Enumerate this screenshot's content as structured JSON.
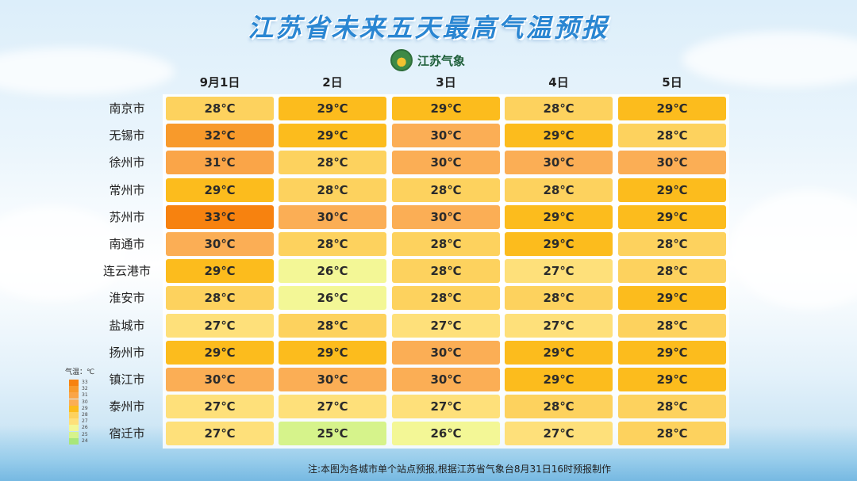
{
  "title": "江苏省未来五天最高气温预报",
  "logo_text": "江苏气象",
  "footnote": "注:本图为各城市单个站点预报,根据江苏省气象台8月31日16时预报制作",
  "chart_data": {
    "type": "table",
    "title": "江苏省未来五天最高气温预报",
    "unit": "℃",
    "columns": [
      "9月1日",
      "2日",
      "3日",
      "4日",
      "5日"
    ],
    "rows": [
      {
        "city": "南京市",
        "values": [
          28,
          29,
          29,
          28,
          29
        ]
      },
      {
        "city": "无锡市",
        "values": [
          32,
          29,
          30,
          29,
          28
        ]
      },
      {
        "city": "徐州市",
        "values": [
          31,
          28,
          30,
          30,
          30
        ]
      },
      {
        "city": "常州市",
        "values": [
          29,
          28,
          28,
          28,
          29
        ]
      },
      {
        "city": "苏州市",
        "values": [
          33,
          30,
          30,
          29,
          29
        ]
      },
      {
        "city": "南通市",
        "values": [
          30,
          28,
          28,
          29,
          28
        ]
      },
      {
        "city": "连云港市",
        "values": [
          29,
          26,
          28,
          27,
          28
        ]
      },
      {
        "city": "淮安市",
        "values": [
          28,
          26,
          28,
          28,
          29
        ]
      },
      {
        "city": "盐城市",
        "values": [
          27,
          28,
          27,
          27,
          28
        ]
      },
      {
        "city": "扬州市",
        "values": [
          29,
          29,
          30,
          29,
          29
        ]
      },
      {
        "city": "镇江市",
        "values": [
          30,
          30,
          30,
          29,
          29
        ]
      },
      {
        "city": "泰州市",
        "values": [
          27,
          27,
          27,
          28,
          28
        ]
      },
      {
        "city": "宿迁市",
        "values": [
          27,
          25,
          26,
          27,
          28
        ]
      }
    ],
    "legend": {
      "title": "气温：℃",
      "levels": [
        33,
        32,
        31,
        30,
        29,
        28,
        27,
        26,
        25,
        24
      ],
      "colors": {
        "33": "#f7820f",
        "32": "#f89a2b",
        "31": "#faa548",
        "30": "#fbae55",
        "29": "#fcbc1d",
        "28": "#fdd25e",
        "27": "#fee07a",
        "26": "#f3f796",
        "25": "#d6f38b",
        "24": "#a8e67a"
      }
    }
  }
}
